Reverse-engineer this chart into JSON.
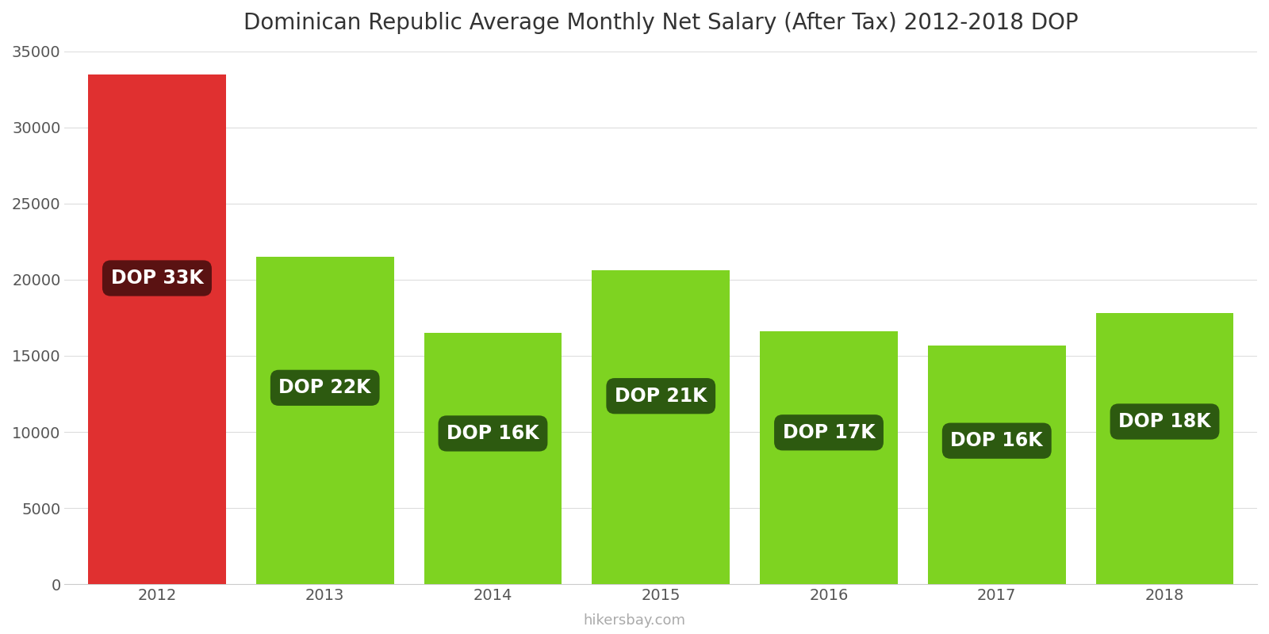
{
  "title": "Dominican Republic Average Monthly Net Salary (After Tax) 2012-2018 DOP",
  "years": [
    2012,
    2013,
    2014,
    2015,
    2016,
    2017,
    2018
  ],
  "values": [
    33500,
    21500,
    16500,
    20600,
    16600,
    15700,
    17800
  ],
  "bar_colors": [
    "#e03030",
    "#7ed321",
    "#7ed321",
    "#7ed321",
    "#7ed321",
    "#7ed321",
    "#7ed321"
  ],
  "label_bg_colors": [
    "#5a1212",
    "#2d5a10",
    "#2d5a10",
    "#2d5a10",
    "#2d5a10",
    "#2d5a10",
    "#2d5a10"
  ],
  "labels": [
    "DOP 33K",
    "DOP 22K",
    "DOP 16K",
    "DOP 21K",
    "DOP 17K",
    "DOP 16K",
    "DOP 18K"
  ],
  "ylim": [
    0,
    35000
  ],
  "yticks": [
    0,
    5000,
    10000,
    15000,
    20000,
    25000,
    30000,
    35000
  ],
  "watermark": "hikersbay.com",
  "background_color": "#ffffff",
  "title_fontsize": 20,
  "tick_fontsize": 14,
  "label_fontsize": 17,
  "bar_width": 0.82,
  "xlim_left": 2011.45,
  "xlim_right": 2018.55
}
